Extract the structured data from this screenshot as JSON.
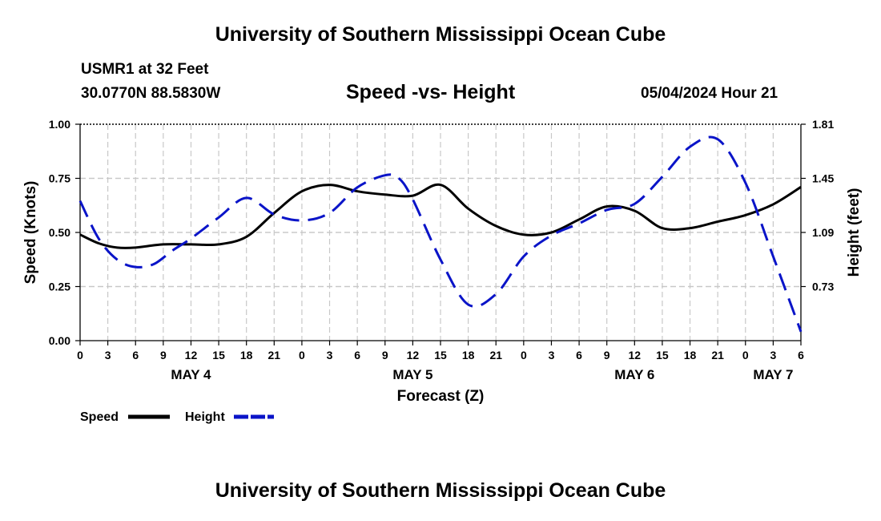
{
  "header": {
    "title": "University of Southern Mississippi Ocean Cube",
    "station": "USMR1 at 32 Feet",
    "coordinates": "30.0770N  88.5830W",
    "subtitle": "Speed -vs- Height",
    "datetime": "05/04/2024 Hour 21"
  },
  "footer": {
    "title": "University of Southern Mississippi Ocean Cube"
  },
  "chart_data": {
    "type": "line",
    "title": "Speed -vs- Height",
    "xlabel": "Forecast (Z)",
    "ylabel_left": "Speed (Knots)",
    "ylabel_right": "Height (feet)",
    "x_hours_range": [
      0,
      78
    ],
    "ylim_left": [
      0,
      1.0
    ],
    "ylim_right": [
      0.37,
      1.81
    ],
    "x_tick_labels": [
      "0",
      "3",
      "6",
      "9",
      "12",
      "15",
      "18",
      "21",
      "0",
      "3",
      "6",
      "9",
      "12",
      "15",
      "18",
      "21",
      "0",
      "3",
      "6",
      "9",
      "12",
      "15",
      "18",
      "21",
      "0",
      "3",
      "6"
    ],
    "date_labels": [
      {
        "label": "MAY 4",
        "hour": 12
      },
      {
        "label": "MAY 5",
        "hour": 36
      },
      {
        "label": "MAY 6",
        "hour": 60
      },
      {
        "label": "MAY 7",
        "hour": 75
      }
    ],
    "left_ticks": [
      "0.00",
      "0.25",
      "0.50",
      "0.75",
      "1.00"
    ],
    "right_ticks": [
      "0.73",
      "1.09",
      "1.45",
      "1.81"
    ],
    "right_tick_values": [
      0.73,
      1.09,
      1.45,
      1.81
    ],
    "grid": true,
    "legend": [
      {
        "name": "Speed",
        "color": "#000000",
        "style": "solid"
      },
      {
        "name": "Height",
        "color": "#0a14c8",
        "style": "dashed"
      }
    ],
    "series": [
      {
        "name": "Speed",
        "axis": "left",
        "color": "#000000",
        "style": "solid",
        "x": [
          0,
          2,
          4,
          6,
          9,
          12,
          15,
          18,
          21,
          24,
          27,
          30,
          33,
          36,
          39,
          42,
          45,
          48,
          51,
          54,
          57,
          60,
          63,
          66,
          69,
          72,
          75,
          78
        ],
        "y": [
          0.49,
          0.45,
          0.43,
          0.43,
          0.445,
          0.445,
          0.445,
          0.48,
          0.59,
          0.69,
          0.72,
          0.69,
          0.675,
          0.67,
          0.72,
          0.61,
          0.53,
          0.49,
          0.5,
          0.56,
          0.62,
          0.6,
          0.52,
          0.52,
          0.55,
          0.58,
          0.63,
          0.71
        ]
      },
      {
        "name": "Height",
        "axis": "right",
        "color": "#0a14c8",
        "style": "dashed",
        "x": [
          0,
          2,
          4,
          6,
          8,
          10,
          12,
          15,
          18,
          21,
          24,
          27,
          30,
          33,
          34.5,
          36,
          39,
          42,
          45,
          48,
          51,
          54,
          57,
          60,
          63,
          66,
          69,
          72,
          75,
          78
        ],
        "y": [
          1.3,
          1.05,
          0.91,
          0.86,
          0.88,
          0.97,
          1.05,
          1.19,
          1.32,
          1.21,
          1.17,
          1.22,
          1.39,
          1.47,
          1.45,
          1.31,
          0.91,
          0.61,
          0.68,
          0.93,
          1.07,
          1.15,
          1.24,
          1.28,
          1.46,
          1.66,
          1.71,
          1.42,
          0.93,
          0.43
        ]
      }
    ]
  }
}
